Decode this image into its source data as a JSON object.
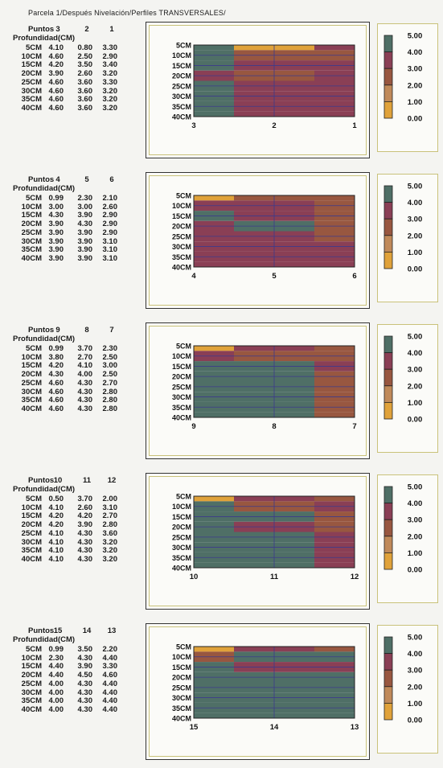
{
  "title": "Parcela 1/Después Nivelación/Perfiles TRANSVERSALES/",
  "row_header": "Profundidad(CM)",
  "points_header": "Puntos",
  "depth_labels": [
    "5CM",
    "10CM",
    "15CM",
    "20CM",
    "25CM",
    "30CM",
    "35CM",
    "40CM"
  ],
  "legend": {
    "ticks": [
      "5.00",
      "4.00",
      "3.00",
      "2.00",
      "1.00",
      "0.00"
    ],
    "colors": [
      "#4f6f66",
      "#8a3f55",
      "#985740",
      "#9c6a3c",
      "#c08a5a",
      "#e0a23a"
    ]
  },
  "chart_data": [
    {
      "type": "heatmap",
      "points": [
        "3",
        "2",
        "1"
      ],
      "depths": [
        "5CM",
        "10CM",
        "15CM",
        "20CM",
        "25CM",
        "30CM",
        "35CM",
        "40CM"
      ],
      "values": [
        [
          "4.10",
          "0.80",
          "3.30"
        ],
        [
          "4.60",
          "2.50",
          "2.90"
        ],
        [
          "4.20",
          "3.50",
          "3.40"
        ],
        [
          "3.90",
          "2.60",
          "3.20"
        ],
        [
          "4.60",
          "3.60",
          "3.30"
        ],
        [
          "4.60",
          "3.60",
          "3.20"
        ],
        [
          "4.60",
          "3.60",
          "3.20"
        ],
        [
          "4.60",
          "3.60",
          "3.20"
        ]
      ]
    },
    {
      "type": "heatmap",
      "points": [
        "4",
        "5",
        "6"
      ],
      "depths": [
        "5CM",
        "10CM",
        "15CM",
        "20CM",
        "25CM",
        "30CM",
        "35CM",
        "40CM"
      ],
      "values": [
        [
          "0.99",
          "2.30",
          "2.10"
        ],
        [
          "3.00",
          "3.00",
          "2.60"
        ],
        [
          "4.30",
          "3.90",
          "2.90"
        ],
        [
          "3.90",
          "4.30",
          "2.90"
        ],
        [
          "3.90",
          "3.90",
          "2.90"
        ],
        [
          "3.90",
          "3.90",
          "3.10"
        ],
        [
          "3.90",
          "3.90",
          "3.10"
        ],
        [
          "3.90",
          "3.90",
          "3.10"
        ]
      ]
    },
    {
      "type": "heatmap",
      "points": [
        "9",
        "8",
        "7"
      ],
      "depths": [
        "5CM",
        "10CM",
        "15CM",
        "20CM",
        "25CM",
        "30CM",
        "35CM",
        "40CM"
      ],
      "values": [
        [
          "0.99",
          "3.70",
          "2.30"
        ],
        [
          "3.80",
          "2.70",
          "2.50"
        ],
        [
          "4.20",
          "4.10",
          "3.00"
        ],
        [
          "4.30",
          "4.00",
          "2.50"
        ],
        [
          "4.60",
          "4.30",
          "2.70"
        ],
        [
          "4.60",
          "4.30",
          "2.80"
        ],
        [
          "4.60",
          "4.30",
          "2.80"
        ],
        [
          "4.60",
          "4.30",
          "2.80"
        ]
      ]
    },
    {
      "type": "heatmap",
      "points": [
        "10",
        "11",
        "12"
      ],
      "depths": [
        "5CM",
        "10CM",
        "15CM",
        "20CM",
        "25CM",
        "30CM",
        "35CM",
        "40CM"
      ],
      "values": [
        [
          "0.50",
          "3.70",
          "2.00"
        ],
        [
          "4.10",
          "2.60",
          "3.10"
        ],
        [
          "4.20",
          "4.20",
          "2.70"
        ],
        [
          "4.20",
          "3.90",
          "2.80"
        ],
        [
          "4.10",
          "4.30",
          "3.60"
        ],
        [
          "4.10",
          "4.30",
          "3.20"
        ],
        [
          "4.10",
          "4.30",
          "3.20"
        ],
        [
          "4.10",
          "4.30",
          "3.20"
        ]
      ]
    },
    {
      "type": "heatmap",
      "points": [
        "15",
        "14",
        "13"
      ],
      "depths": [
        "5CM",
        "10CM",
        "15CM",
        "20CM",
        "25CM",
        "30CM",
        "35CM",
        "40CM"
      ],
      "values": [
        [
          "0.99",
          "3.50",
          "2.20"
        ],
        [
          "2.30",
          "4.30",
          "4.40"
        ],
        [
          "4.40",
          "3.90",
          "3.30"
        ],
        [
          "4.40",
          "4.50",
          "4.60"
        ],
        [
          "4.00",
          "4.30",
          "4.40"
        ],
        [
          "4.00",
          "4.30",
          "4.40"
        ],
        [
          "4.00",
          "4.30",
          "4.40"
        ],
        [
          "4.00",
          "4.30",
          "4.40"
        ]
      ]
    }
  ]
}
